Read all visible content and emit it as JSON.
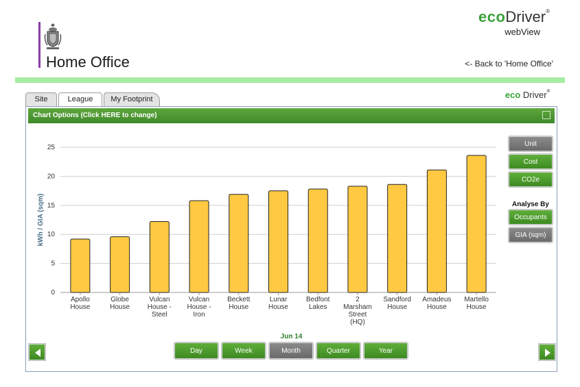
{
  "header": {
    "org_title": "Home Office",
    "brand_eco": "eco",
    "brand_driver": "Driver",
    "brand_reg": "®",
    "brand_sub": "webView",
    "back_link": "<- Back to 'Home Office'"
  },
  "tabs": [
    {
      "label": "Site",
      "active": false
    },
    {
      "label": "League",
      "active": true
    },
    {
      "label": "My Footprint",
      "active": false
    }
  ],
  "panel": {
    "chart_options_label": "Chart Options (Click HERE to change)",
    "side_buttons": {
      "unit": "Unit",
      "cost": "Cost",
      "co2e": "CO2e",
      "analyse_by": "Analyse By",
      "occupants": "Occupants",
      "gia": "GIA (sqm)"
    },
    "period_label": "Jun 14",
    "period_buttons": [
      "Day",
      "Week",
      "Month",
      "Quarter",
      "Year"
    ],
    "period_active": "Month"
  },
  "colors": {
    "accent_green": "#3aa23a",
    "bar_fill": "#ffc942",
    "header_purple": "#8a3ca8",
    "stripe_green": "#a6eca2"
  },
  "icons": [
    "crest-icon",
    "arrow-left-icon",
    "arrow-right-icon"
  ],
  "chart_data": {
    "type": "bar",
    "ylabel": "kWh / GIA (sqm)",
    "ylim": [
      0,
      25
    ],
    "yticks": [
      0,
      5,
      10,
      15,
      20,
      25
    ],
    "grid": true,
    "categories": [
      [
        "Apollo",
        "House"
      ],
      [
        "Globe",
        "House"
      ],
      [
        "Vulcan",
        "House -",
        "Steel"
      ],
      [
        "Vulcan",
        "House -",
        "Iron"
      ],
      [
        "Beckett",
        "House"
      ],
      [
        "Lunar",
        "House"
      ],
      [
        "Bedfont",
        "Lakes"
      ],
      [
        "2",
        "Marsham",
        "Street",
        "(HQ)"
      ],
      [
        "Sandford",
        "House"
      ],
      [
        "Amadeus",
        "House"
      ],
      [
        "Martello",
        "House"
      ]
    ],
    "values": [
      9.2,
      9.6,
      12.2,
      15.8,
      16.9,
      17.5,
      17.8,
      18.3,
      18.6,
      21.1,
      23.6
    ]
  }
}
